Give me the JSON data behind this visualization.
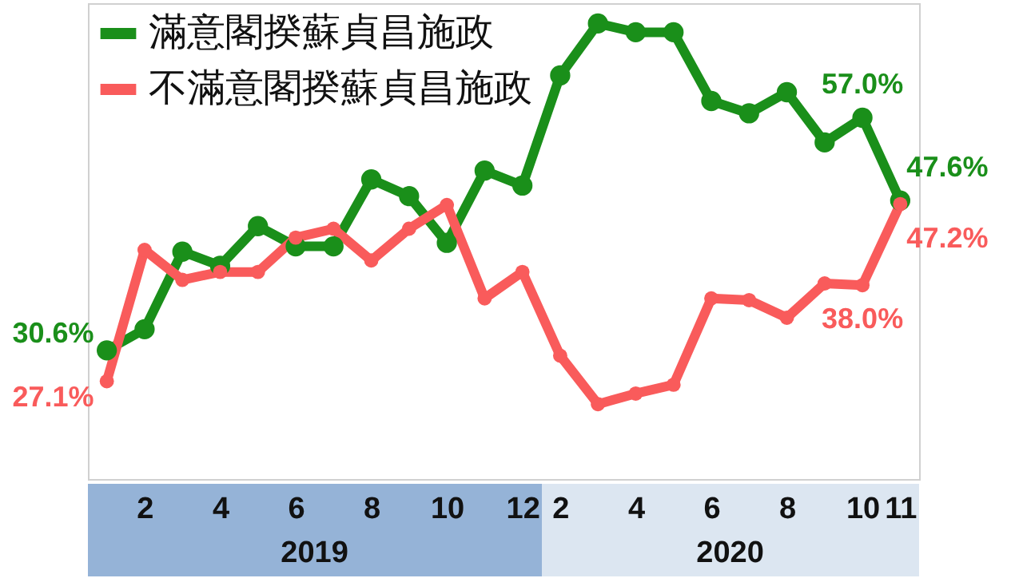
{
  "chart_data": {
    "type": "line",
    "categories": [
      null,
      "2",
      null,
      "4",
      null,
      "6",
      null,
      "8",
      null,
      "10",
      null,
      "12",
      "2",
      null,
      "4",
      null,
      "6",
      null,
      "8",
      null,
      "10",
      "11"
    ],
    "series": [
      {
        "name": "滿意閣揆蘇貞昌施政",
        "color": "#1a8f1a",
        "values": [
          30.6,
          33.0,
          41.8,
          40.2,
          44.7,
          42.4,
          42.4,
          50.0,
          48.1,
          42.8,
          51.0,
          49.3,
          61.8,
          67.7,
          66.7,
          66.7,
          58.9,
          57.5,
          59.9,
          54.2,
          57.0,
          47.6
        ],
        "value_labels": [
          "30.6%",
          null,
          null,
          null,
          null,
          null,
          null,
          null,
          null,
          null,
          null,
          null,
          null,
          null,
          null,
          null,
          null,
          null,
          null,
          null,
          "57.0%",
          "47.6%"
        ]
      },
      {
        "name": "不滿意閣揆蘇貞昌施政",
        "color": "#f95b5b",
        "values": [
          27.1,
          42.0,
          38.6,
          39.5,
          39.5,
          43.4,
          44.4,
          40.8,
          44.4,
          47.1,
          36.5,
          39.5,
          30.0,
          24.5,
          25.7,
          26.7,
          36.5,
          36.3,
          34.3,
          38.2,
          38.0,
          47.2
        ],
        "value_labels": [
          "27.1%",
          null,
          null,
          null,
          null,
          null,
          null,
          null,
          null,
          null,
          null,
          null,
          null,
          null,
          null,
          null,
          null,
          null,
          null,
          null,
          "38.0%",
          "47.2%"
        ]
      }
    ],
    "annotations": [
      "2019",
      "2020"
    ],
    "ylim": [
      16,
      70
    ],
    "tick_labels": "x",
    "grid": false,
    "legend": "top left",
    "marker": "circle",
    "line_style": "solid"
  }
}
